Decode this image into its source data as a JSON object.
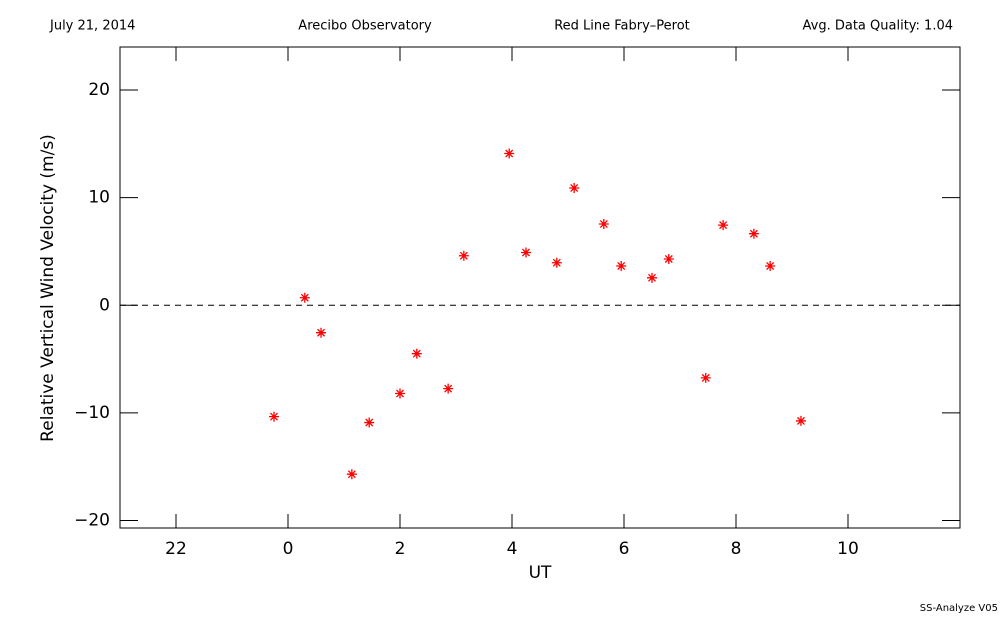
{
  "header": {
    "date": "July 21, 2014",
    "site": "Arecibo Observatory",
    "instrument": "Red Line Fabry–Perot",
    "quality": "Avg. Data Quality: 1.04"
  },
  "footer": "SS-Analyze V05",
  "chart_data": {
    "type": "scatter",
    "xlabel": "UT",
    "ylabel": "Relative Vertical Wind Velocity (m/s)",
    "x": [
      -0.25,
      0.3,
      0.59,
      1.14,
      1.45,
      2.0,
      2.3,
      2.86,
      3.14,
      3.95,
      4.25,
      4.8,
      5.11,
      5.64,
      5.95,
      6.5,
      6.8,
      7.46,
      7.77,
      8.32,
      8.61,
      9.16
    ],
    "values": [
      -10.35,
      0.7,
      -2.55,
      -15.7,
      -10.9,
      -8.2,
      -4.5,
      -7.75,
      4.6,
      14.1,
      4.9,
      3.95,
      10.9,
      7.55,
      3.65,
      2.55,
      4.3,
      -6.75,
      7.45,
      6.65,
      3.65,
      -10.75
    ],
    "color": "#ff0000",
    "marker": "asterisk",
    "xlim": [
      -3,
      12
    ],
    "xticks": [
      {
        "value": -2,
        "label": "22"
      },
      0,
      2,
      4,
      6,
      8,
      10
    ],
    "ylim": [
      -20.7,
      24
    ],
    "yticks": [
      {
        "value": -20,
        "label": "−20"
      },
      {
        "value": -10,
        "label": "−10"
      },
      0,
      10,
      20
    ],
    "hline": 0
  }
}
